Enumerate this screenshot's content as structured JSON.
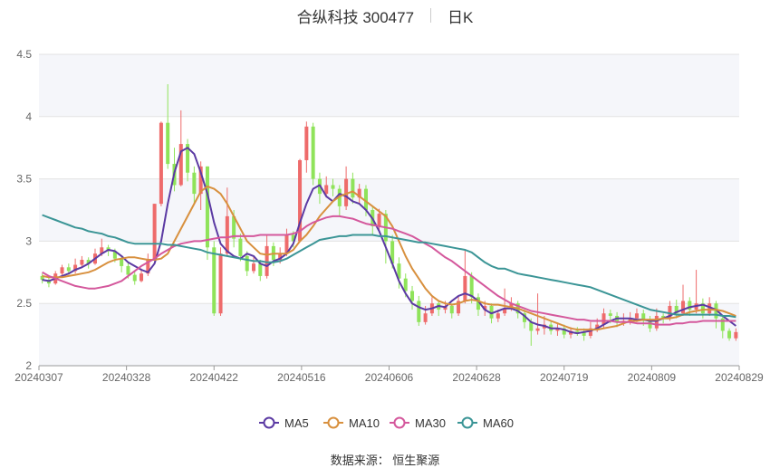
{
  "header": {
    "title": "合纵科技 300477",
    "period": "日K"
  },
  "source_text": "数据来源： 恒生聚源",
  "chart_data": {
    "type": "candlestick",
    "title": "合纵科技 300477",
    "ylim": [
      2,
      4.5
    ],
    "y_ticks": [
      "2",
      "2.5",
      "3",
      "3.5",
      "4",
      "4.5"
    ],
    "x_ticks": [
      "20240307",
      "20240328",
      "20240422",
      "20240516",
      "20240606",
      "20240628",
      "20240719",
      "20240809",
      "20240829"
    ],
    "grid": "horizontal, alternating bands",
    "legend_position": "bottom",
    "up_color": "#ee6b6b",
    "down_color": "#8fe35a",
    "legend": [
      {
        "name": "MA5",
        "color": "#5b3aa3"
      },
      {
        "name": "MA10",
        "color": "#d8903e"
      },
      {
        "name": "MA30",
        "color": "#d4589c"
      },
      {
        "name": "MA60",
        "color": "#3b9596"
      }
    ],
    "ohlc": [
      [
        2.72,
        2.69,
        2.74,
        2.66
      ],
      [
        2.69,
        2.66,
        2.71,
        2.63
      ],
      [
        2.66,
        2.74,
        2.76,
        2.65
      ],
      [
        2.74,
        2.79,
        2.81,
        2.71
      ],
      [
        2.79,
        2.76,
        2.82,
        2.73
      ],
      [
        2.76,
        2.81,
        2.86,
        2.74
      ],
      [
        2.81,
        2.85,
        2.88,
        2.79
      ],
      [
        2.85,
        2.82,
        2.87,
        2.78
      ],
      [
        2.82,
        2.9,
        2.94,
        2.81
      ],
      [
        2.9,
        2.95,
        3.02,
        2.88
      ],
      [
        2.95,
        2.92,
        2.97,
        2.88
      ],
      [
        2.92,
        2.86,
        2.94,
        2.83
      ],
      [
        2.86,
        2.8,
        2.88,
        2.75
      ],
      [
        2.8,
        2.73,
        2.83,
        2.7
      ],
      [
        2.73,
        2.68,
        2.76,
        2.65
      ],
      [
        2.68,
        2.74,
        2.78,
        2.67
      ],
      [
        2.74,
        2.85,
        2.9,
        2.72
      ],
      [
        2.85,
        3.3,
        3.3,
        2.84
      ],
      [
        3.3,
        3.95,
        3.96,
        3.28
      ],
      [
        3.95,
        3.62,
        4.26,
        3.58
      ],
      [
        3.62,
        3.45,
        3.75,
        3.4
      ],
      [
        3.45,
        3.78,
        4.05,
        3.44
      ],
      [
        3.78,
        3.55,
        3.82,
        3.48
      ],
      [
        3.55,
        3.38,
        3.6,
        3.3
      ],
      [
        3.38,
        3.6,
        3.64,
        3.25
      ],
      [
        3.6,
        2.95,
        3.6,
        2.85
      ],
      [
        2.95,
        2.42,
        3.0,
        2.4
      ],
      [
        2.42,
        2.9,
        2.95,
        2.4
      ],
      [
        2.9,
        3.2,
        3.43,
        2.88
      ],
      [
        3.2,
        3.02,
        3.25,
        2.95
      ],
      [
        3.02,
        2.88,
        3.06,
        2.84
      ],
      [
        2.88,
        2.76,
        2.92,
        2.72
      ],
      [
        2.76,
        2.82,
        2.88,
        2.74
      ],
      [
        2.82,
        2.72,
        2.85,
        2.68
      ],
      [
        2.72,
        2.96,
        3.05,
        2.7
      ],
      [
        2.96,
        2.85,
        2.99,
        2.8
      ],
      [
        2.85,
        2.9,
        2.95,
        2.82
      ],
      [
        2.9,
        3.05,
        3.1,
        2.88
      ],
      [
        3.05,
        3.0,
        3.08,
        2.95
      ],
      [
        3.0,
        3.65,
        3.66,
        2.99
      ],
      [
        3.65,
        3.92,
        3.96,
        3.55
      ],
      [
        3.92,
        3.5,
        3.95,
        3.45
      ],
      [
        3.5,
        3.38,
        3.55,
        3.3
      ],
      [
        3.38,
        3.45,
        3.52,
        3.35
      ],
      [
        3.45,
        3.42,
        3.5,
        3.36
      ],
      [
        3.42,
        3.28,
        3.45,
        3.2
      ],
      [
        3.28,
        3.5,
        3.6,
        3.25
      ],
      [
        3.5,
        3.35,
        3.55,
        3.3
      ],
      [
        3.35,
        3.42,
        3.46,
        3.3
      ],
      [
        3.42,
        3.25,
        3.45,
        3.2
      ],
      [
        3.25,
        3.12,
        3.28,
        3.05
      ],
      [
        3.12,
        3.22,
        3.26,
        3.08
      ],
      [
        3.22,
        3.0,
        3.25,
        2.82
      ],
      [
        3.0,
        2.82,
        3.05,
        2.78
      ],
      [
        2.82,
        2.7,
        2.87,
        2.62
      ],
      [
        2.7,
        2.6,
        2.74,
        2.55
      ],
      [
        2.6,
        2.52,
        2.64,
        2.45
      ],
      [
        2.52,
        2.35,
        2.56,
        2.32
      ],
      [
        2.35,
        2.42,
        2.48,
        2.33
      ],
      [
        2.42,
        2.5,
        2.55,
        2.4
      ],
      [
        2.5,
        2.45,
        2.52,
        2.4
      ],
      [
        2.45,
        2.48,
        2.52,
        2.42
      ],
      [
        2.48,
        2.42,
        2.5,
        2.38
      ],
      [
        2.42,
        2.52,
        2.56,
        2.4
      ],
      [
        2.52,
        2.72,
        2.93,
        2.5
      ],
      [
        2.72,
        2.55,
        2.75,
        2.5
      ],
      [
        2.55,
        2.45,
        2.58,
        2.4
      ],
      [
        2.45,
        2.48,
        2.52,
        2.4
      ],
      [
        2.48,
        2.38,
        2.5,
        2.34
      ],
      [
        2.38,
        2.42,
        2.45,
        2.35
      ],
      [
        2.42,
        2.46,
        2.62,
        2.4
      ],
      [
        2.46,
        2.5,
        2.55,
        2.44
      ],
      [
        2.5,
        2.42,
        2.52,
        2.38
      ],
      [
        2.42,
        2.35,
        2.45,
        2.3
      ],
      [
        2.35,
        2.28,
        2.38,
        2.16
      ],
      [
        2.28,
        2.3,
        2.58,
        2.25
      ],
      [
        2.3,
        2.33,
        2.4,
        2.25
      ],
      [
        2.33,
        2.28,
        2.36,
        2.25
      ],
      [
        2.28,
        2.3,
        2.34,
        2.24
      ],
      [
        2.3,
        2.25,
        2.33,
        2.22
      ],
      [
        2.25,
        2.28,
        2.31,
        2.22
      ],
      [
        2.28,
        2.27,
        2.31,
        2.24
      ],
      [
        2.27,
        2.24,
        2.3,
        2.2
      ],
      [
        2.24,
        2.3,
        2.35,
        2.22
      ],
      [
        2.3,
        2.33,
        2.38,
        2.27
      ],
      [
        2.33,
        2.42,
        2.46,
        2.3
      ],
      [
        2.42,
        2.4,
        2.45,
        2.34
      ],
      [
        2.4,
        2.35,
        2.43,
        2.31
      ],
      [
        2.35,
        2.36,
        2.42,
        2.32
      ],
      [
        2.36,
        2.38,
        2.43,
        2.33
      ],
      [
        2.38,
        2.42,
        2.46,
        2.35
      ],
      [
        2.42,
        2.36,
        2.45,
        2.32
      ],
      [
        2.36,
        2.3,
        2.4,
        2.27
      ],
      [
        2.3,
        2.4,
        2.46,
        2.28
      ],
      [
        2.4,
        2.38,
        2.42,
        2.34
      ],
      [
        2.38,
        2.48,
        2.52,
        2.36
      ],
      [
        2.48,
        2.42,
        2.53,
        2.38
      ],
      [
        2.42,
        2.52,
        2.65,
        2.4
      ],
      [
        2.52,
        2.45,
        2.55,
        2.4
      ],
      [
        2.45,
        2.5,
        2.77,
        2.42
      ],
      [
        2.5,
        2.42,
        2.54,
        2.38
      ],
      [
        2.42,
        2.5,
        2.55,
        2.4
      ],
      [
        2.5,
        2.38,
        2.52,
        2.3
      ],
      [
        2.38,
        2.28,
        2.4,
        2.22
      ],
      [
        2.28,
        2.22,
        2.3,
        2.2
      ],
      [
        2.22,
        2.27,
        2.3,
        2.2
      ]
    ],
    "ma_series": [
      {
        "name": "MA5",
        "values": [
          2.69,
          2.68,
          2.7,
          2.72,
          2.74,
          2.77,
          2.79,
          2.82,
          2.86,
          2.9,
          2.93,
          2.92,
          2.88,
          2.83,
          2.8,
          2.77,
          2.75,
          2.82,
          3.0,
          3.3,
          3.55,
          3.72,
          3.75,
          3.7,
          3.55,
          3.38,
          3.15,
          2.98,
          2.92,
          2.88,
          2.86,
          2.9,
          2.88,
          2.82,
          2.8,
          2.84,
          2.86,
          2.9,
          2.98,
          3.15,
          3.3,
          3.42,
          3.45,
          3.36,
          3.32,
          3.38,
          3.36,
          3.32,
          3.3,
          3.25,
          3.18,
          3.08,
          2.95,
          2.82,
          2.68,
          2.58,
          2.5,
          2.47,
          2.45,
          2.46,
          2.48,
          2.47,
          2.52,
          2.56,
          2.58,
          2.56,
          2.52,
          2.45,
          2.42,
          2.44,
          2.46,
          2.46,
          2.44,
          2.4,
          2.35,
          2.33,
          2.32,
          2.3,
          2.3,
          2.29,
          2.27,
          2.26,
          2.27,
          2.28,
          2.3,
          2.33,
          2.36,
          2.38,
          2.38,
          2.38,
          2.37,
          2.37,
          2.36,
          2.36,
          2.38,
          2.4,
          2.43,
          2.45,
          2.47,
          2.48,
          2.49,
          2.47,
          2.45,
          2.4,
          2.36,
          2.32
        ]
      },
      {
        "name": "MA10",
        "values": [
          2.72,
          2.71,
          2.71,
          2.71,
          2.72,
          2.73,
          2.74,
          2.75,
          2.77,
          2.8,
          2.83,
          2.85,
          2.86,
          2.87,
          2.87,
          2.86,
          2.85,
          2.85,
          2.86,
          2.9,
          3.0,
          3.1,
          3.2,
          3.3,
          3.4,
          3.44,
          3.42,
          3.38,
          3.3,
          3.2,
          3.1,
          3.0,
          2.95,
          2.9,
          2.89,
          2.9,
          2.9,
          2.9,
          2.93,
          3.0,
          3.05,
          3.12,
          3.2,
          3.26,
          3.32,
          3.36,
          3.38,
          3.4,
          3.36,
          3.32,
          3.28,
          3.24,
          3.2,
          3.12,
          3.0,
          2.88,
          2.78,
          2.7,
          2.62,
          2.56,
          2.52,
          2.5,
          2.49,
          2.5,
          2.52,
          2.53,
          2.52,
          2.5,
          2.49,
          2.49,
          2.48,
          2.47,
          2.46,
          2.44,
          2.42,
          2.4,
          2.38,
          2.36,
          2.34,
          2.32,
          2.3,
          2.29,
          2.29,
          2.29,
          2.29,
          2.3,
          2.31,
          2.32,
          2.34,
          2.36,
          2.36,
          2.37,
          2.37,
          2.37,
          2.38,
          2.38,
          2.39,
          2.41,
          2.43,
          2.44,
          2.45,
          2.45,
          2.45,
          2.44,
          2.42,
          2.4
        ]
      },
      {
        "name": "MA30",
        "values": [
          2.75,
          2.72,
          2.7,
          2.68,
          2.66,
          2.64,
          2.63,
          2.62,
          2.62,
          2.63,
          2.64,
          2.66,
          2.68,
          2.72,
          2.76,
          2.8,
          2.83,
          2.86,
          2.9,
          2.93,
          2.96,
          2.98,
          2.99,
          3.0,
          3.0,
          3.01,
          3.02,
          3.03,
          3.03,
          3.04,
          3.04,
          3.04,
          3.04,
          3.05,
          3.05,
          3.05,
          3.05,
          3.05,
          3.06,
          3.08,
          3.12,
          3.15,
          3.17,
          3.19,
          3.2,
          3.2,
          3.19,
          3.18,
          3.16,
          3.14,
          3.13,
          3.12,
          3.11,
          3.1,
          3.08,
          3.06,
          3.04,
          3.01,
          2.98,
          2.95,
          2.91,
          2.87,
          2.84,
          2.8,
          2.76,
          2.72,
          2.68,
          2.64,
          2.6,
          2.56,
          2.53,
          2.5,
          2.48,
          2.46,
          2.44,
          2.43,
          2.42,
          2.41,
          2.4,
          2.39,
          2.38,
          2.37,
          2.37,
          2.36,
          2.36,
          2.36,
          2.36,
          2.35,
          2.35,
          2.35,
          2.34,
          2.34,
          2.34,
          2.33,
          2.33,
          2.33,
          2.34,
          2.34,
          2.35,
          2.35,
          2.36,
          2.36,
          2.36,
          2.36,
          2.36,
          2.36
        ]
      },
      {
        "name": "MA60",
        "values": [
          3.21,
          3.19,
          3.17,
          3.15,
          3.13,
          3.11,
          3.1,
          3.08,
          3.07,
          3.06,
          3.04,
          3.03,
          3.01,
          2.99,
          2.98,
          2.98,
          2.98,
          2.98,
          2.98,
          2.97,
          2.97,
          2.96,
          2.95,
          2.94,
          2.93,
          2.91,
          2.9,
          2.89,
          2.88,
          2.87,
          2.86,
          2.85,
          2.84,
          2.84,
          2.83,
          2.83,
          2.84,
          2.86,
          2.89,
          2.92,
          2.95,
          2.98,
          3.01,
          3.02,
          3.03,
          3.04,
          3.04,
          3.05,
          3.05,
          3.05,
          3.05,
          3.04,
          3.04,
          3.03,
          3.02,
          3.01,
          3.0,
          2.99,
          2.99,
          2.98,
          2.97,
          2.96,
          2.95,
          2.94,
          2.93,
          2.91,
          2.87,
          2.83,
          2.8,
          2.78,
          2.78,
          2.76,
          2.74,
          2.73,
          2.72,
          2.71,
          2.7,
          2.69,
          2.68,
          2.67,
          2.66,
          2.65,
          2.64,
          2.63,
          2.61,
          2.59,
          2.57,
          2.55,
          2.53,
          2.51,
          2.49,
          2.47,
          2.45,
          2.44,
          2.43,
          2.42,
          2.41,
          2.41,
          2.41,
          2.41,
          2.41,
          2.41,
          2.41,
          2.4,
          2.4,
          2.39
        ]
      }
    ]
  }
}
